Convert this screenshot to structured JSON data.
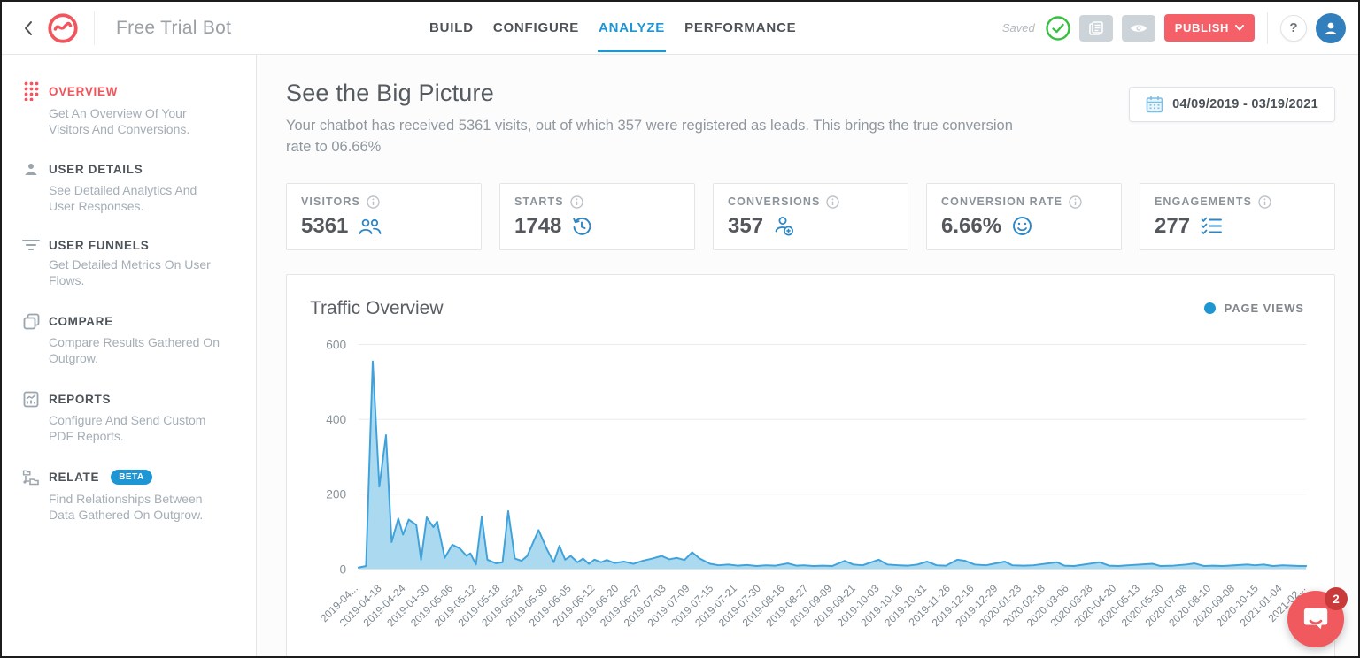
{
  "header": {
    "bot_name": "Free Trial Bot",
    "tabs": [
      {
        "label": "BUILD",
        "active": false
      },
      {
        "label": "CONFIGURE",
        "active": false
      },
      {
        "label": "ANALYZE",
        "active": true
      },
      {
        "label": "PERFORMANCE",
        "active": false
      }
    ],
    "saved_label": "Saved",
    "publish_label": "PUBLISH",
    "help_label": "?"
  },
  "sidebar": {
    "items": [
      {
        "label": "OVERVIEW",
        "desc": "Get An Overview Of Your Visitors And Conversions.",
        "active": true
      },
      {
        "label": "USER DETAILS",
        "desc": "See Detailed Analytics And User Responses.",
        "active": false
      },
      {
        "label": "USER FUNNELS",
        "desc": "Get Detailed Metrics On User Flows.",
        "active": false
      },
      {
        "label": "COMPARE",
        "desc": "Compare Results Gathered On Outgrow.",
        "active": false
      },
      {
        "label": "REPORTS",
        "desc": "Configure And Send Custom PDF Reports.",
        "active": false
      },
      {
        "label": "RELATE",
        "badge": "BETA",
        "desc": "Find Relationships Between Data Gathered On Outgrow.",
        "active": false
      }
    ]
  },
  "main": {
    "title": "See the Big Picture",
    "subtitle": "Your chatbot has received 5361 visits, out of which 357 were registered as leads. This brings the true conversion rate to 06.66%",
    "date_range": "04/09/2019 - 03/19/2021",
    "stats": [
      {
        "label": "VISITORS",
        "value": "5361",
        "icon": "people-icon"
      },
      {
        "label": "STARTS",
        "value": "1748",
        "icon": "history-clock-icon"
      },
      {
        "label": "CONVERSIONS",
        "value": "357",
        "icon": "person-add-icon"
      },
      {
        "label": "CONVERSION RATE",
        "value": "6.66%",
        "icon": "smiley-icon"
      },
      {
        "label": "ENGAGEMENTS",
        "value": "277",
        "icon": "checklist-icon"
      }
    ]
  },
  "chart_data": {
    "type": "area",
    "title": "Traffic Overview",
    "legend": [
      {
        "label": "PAGE VIEWS",
        "color": "#1e96d3",
        "position": "top-right"
      }
    ],
    "ylim": [
      0,
      600
    ],
    "yticks": [
      0,
      200,
      400,
      600
    ],
    "grid": true,
    "line_color": "#3fa2da",
    "fill_color": "#abd9f0",
    "x_tick_labels": [
      "2019-04...",
      "2019-04-18",
      "2019-04-24",
      "2019-04-30",
      "2019-05-06",
      "2019-05-12",
      "2019-05-18",
      "2019-05-24",
      "2019-05-30",
      "2019-06-05",
      "2019-06-12",
      "2019-06-20",
      "2019-06-27",
      "2019-07-03",
      "2019-07-09",
      "2019-07-15",
      "2019-07-21",
      "2019-07-30",
      "2019-08-16",
      "2019-08-27",
      "2019-09-09",
      "2019-09-21",
      "2019-10-03",
      "2019-10-16",
      "2019-10-31",
      "2019-11-26",
      "2019-12-16",
      "2019-12-29",
      "2020-01-23",
      "2020-02-18",
      "2020-03-06",
      "2020-03-28",
      "2020-04-20",
      "2020-05-13",
      "2020-05-30",
      "2020-07-08",
      "2020-08-10",
      "2020-09-08",
      "2020-10-15",
      "2021-01-04",
      "2021-02..."
    ],
    "series": [
      {
        "name": "PAGE VIEWS",
        "points_x_percent_y_value": [
          [
            0,
            4
          ],
          [
            0.8,
            8
          ],
          [
            1.5,
            555
          ],
          [
            2.2,
            220
          ],
          [
            2.9,
            358
          ],
          [
            3.5,
            72
          ],
          [
            4.2,
            135
          ],
          [
            4.7,
            92
          ],
          [
            5.3,
            132
          ],
          [
            6.1,
            118
          ],
          [
            6.6,
            25
          ],
          [
            7.2,
            138
          ],
          [
            7.9,
            112
          ],
          [
            8.3,
            127
          ],
          [
            9.1,
            30
          ],
          [
            9.9,
            65
          ],
          [
            10.7,
            55
          ],
          [
            11.4,
            35
          ],
          [
            11.8,
            42
          ],
          [
            12.4,
            12
          ],
          [
            13.0,
            140
          ],
          [
            13.6,
            25
          ],
          [
            14.5,
            15
          ],
          [
            15.2,
            18
          ],
          [
            15.8,
            155
          ],
          [
            16.5,
            28
          ],
          [
            17.2,
            22
          ],
          [
            17.8,
            35
          ],
          [
            19.0,
            104
          ],
          [
            19.9,
            52
          ],
          [
            20.6,
            18
          ],
          [
            21.2,
            62
          ],
          [
            21.8,
            25
          ],
          [
            22.4,
            35
          ],
          [
            23.1,
            18
          ],
          [
            23.7,
            28
          ],
          [
            24.3,
            14
          ],
          [
            24.9,
            25
          ],
          [
            25.6,
            18
          ],
          [
            26.2,
            24
          ],
          [
            27.0,
            16
          ],
          [
            28.0,
            20
          ],
          [
            29.0,
            14
          ],
          [
            30.0,
            22
          ],
          [
            31.0,
            28
          ],
          [
            32.0,
            35
          ],
          [
            32.8,
            26
          ],
          [
            33.6,
            30
          ],
          [
            34.4,
            24
          ],
          [
            35.2,
            45
          ],
          [
            36.0,
            28
          ],
          [
            37.1,
            14
          ],
          [
            38.0,
            10
          ],
          [
            39.0,
            12
          ],
          [
            40.0,
            9
          ],
          [
            41.0,
            11
          ],
          [
            42.0,
            8
          ],
          [
            43.0,
            10
          ],
          [
            44.0,
            9
          ],
          [
            45.3,
            15
          ],
          [
            46.2,
            9
          ],
          [
            47.0,
            10
          ],
          [
            48.0,
            8
          ],
          [
            49.0,
            9
          ],
          [
            50.0,
            8
          ],
          [
            51.3,
            22
          ],
          [
            52.2,
            12
          ],
          [
            53.2,
            10
          ],
          [
            54.9,
            25
          ],
          [
            55.8,
            12
          ],
          [
            57.0,
            10
          ],
          [
            58.0,
            9
          ],
          [
            59.0,
            12
          ],
          [
            60.0,
            20
          ],
          [
            61.0,
            10
          ],
          [
            62.0,
            9
          ],
          [
            63.2,
            25
          ],
          [
            64.0,
            22
          ],
          [
            65.0,
            12
          ],
          [
            66.2,
            10
          ],
          [
            68.2,
            20
          ],
          [
            69.0,
            10
          ],
          [
            70.2,
            9
          ],
          [
            71.2,
            10
          ],
          [
            73.7,
            18
          ],
          [
            74.5,
            9
          ],
          [
            75.5,
            8
          ],
          [
            77.4,
            15
          ],
          [
            78.2,
            18
          ],
          [
            79.2,
            9
          ],
          [
            80.2,
            8
          ],
          [
            81.2,
            10
          ],
          [
            83.8,
            14
          ],
          [
            84.6,
            8
          ],
          [
            86.0,
            9
          ],
          [
            87.4,
            12
          ],
          [
            88.2,
            15
          ],
          [
            89.2,
            8
          ],
          [
            90.2,
            9
          ],
          [
            91.2,
            8
          ],
          [
            93.8,
            12
          ],
          [
            94.6,
            10
          ],
          [
            95.5,
            12
          ],
          [
            96.5,
            8
          ],
          [
            97.5,
            10
          ],
          [
            98.5,
            9
          ],
          [
            99.3,
            8
          ],
          [
            100,
            8
          ]
        ]
      }
    ]
  },
  "chat_widget": {
    "badge": "2"
  },
  "colors": {
    "brand_red": "#f2555c",
    "accent_blue": "#1e96d3",
    "stat_icon_blue": "#2d86c5",
    "publish_red": "#f55f68",
    "saved_green": "#35c03f"
  }
}
